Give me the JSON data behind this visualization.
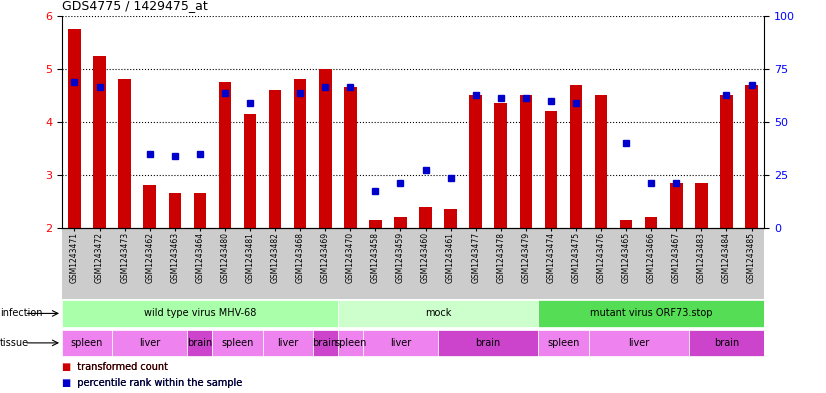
{
  "title": "GDS4775 / 1429475_at",
  "samples": [
    "GSM1243471",
    "GSM1243472",
    "GSM1243473",
    "GSM1243462",
    "GSM1243463",
    "GSM1243464",
    "GSM1243480",
    "GSM1243481",
    "GSM1243482",
    "GSM1243468",
    "GSM1243469",
    "GSM1243470",
    "GSM1243458",
    "GSM1243459",
    "GSM1243460",
    "GSM1243461",
    "GSM1243477",
    "GSM1243478",
    "GSM1243479",
    "GSM1243474",
    "GSM1243475",
    "GSM1243476",
    "GSM1243465",
    "GSM1243466",
    "GSM1243467",
    "GSM1243483",
    "GSM1243484",
    "GSM1243485"
  ],
  "red_values": [
    5.75,
    5.25,
    4.8,
    2.8,
    2.65,
    2.65,
    4.75,
    4.15,
    4.6,
    4.8,
    5.0,
    4.65,
    2.15,
    2.2,
    2.4,
    2.35,
    4.5,
    4.35,
    4.5,
    4.2,
    4.7,
    4.5,
    2.15,
    2.2,
    2.85,
    2.85,
    4.5,
    4.7
  ],
  "blue_values": [
    4.75,
    4.65,
    null,
    3.4,
    3.35,
    3.4,
    4.55,
    4.35,
    null,
    4.55,
    4.65,
    4.65,
    2.7,
    2.85,
    3.1,
    2.95,
    4.5,
    4.45,
    4.45,
    4.4,
    4.35,
    null,
    3.6,
    2.85,
    2.85,
    null,
    4.5,
    4.7
  ],
  "bar_bottom": 2.0,
  "ylim": [
    2.0,
    6.0
  ],
  "ylim_right": [
    0,
    100
  ],
  "yticks_left": [
    2,
    3,
    4,
    5,
    6
  ],
  "yticks_right": [
    0,
    25,
    50,
    75,
    100
  ],
  "infection_groups": [
    {
      "label": "wild type virus MHV-68",
      "start": 0,
      "end": 11,
      "color": "#aaffaa"
    },
    {
      "label": "mock",
      "start": 11,
      "end": 19,
      "color": "#ccffcc"
    },
    {
      "label": "mutant virus ORF73.stop",
      "start": 19,
      "end": 28,
      "color": "#55dd55"
    }
  ],
  "tissue_groups": [
    {
      "label": "spleen",
      "start": 0,
      "end": 2,
      "color": "#ee82ee"
    },
    {
      "label": "liver",
      "start": 2,
      "end": 5,
      "color": "#ee82ee"
    },
    {
      "label": "brain",
      "start": 5,
      "end": 6,
      "color": "#cc44cc"
    },
    {
      "label": "spleen",
      "start": 6,
      "end": 8,
      "color": "#ee82ee"
    },
    {
      "label": "liver",
      "start": 8,
      "end": 10,
      "color": "#ee82ee"
    },
    {
      "label": "brain",
      "start": 10,
      "end": 11,
      "color": "#cc44cc"
    },
    {
      "label": "spleen",
      "start": 11,
      "end": 12,
      "color": "#ee82ee"
    },
    {
      "label": "liver",
      "start": 12,
      "end": 15,
      "color": "#ee82ee"
    },
    {
      "label": "brain",
      "start": 15,
      "end": 19,
      "color": "#cc44cc"
    },
    {
      "label": "spleen",
      "start": 19,
      "end": 21,
      "color": "#ee82ee"
    },
    {
      "label": "liver",
      "start": 21,
      "end": 25,
      "color": "#ee82ee"
    },
    {
      "label": "brain",
      "start": 25,
      "end": 28,
      "color": "#cc44cc"
    }
  ],
  "red_color": "#cc0000",
  "blue_color": "#0000cc",
  "bar_width": 0.5,
  "blue_marker_size": 5,
  "plot_bg": "#ffffff",
  "xticklabel_bg": "#cccccc"
}
